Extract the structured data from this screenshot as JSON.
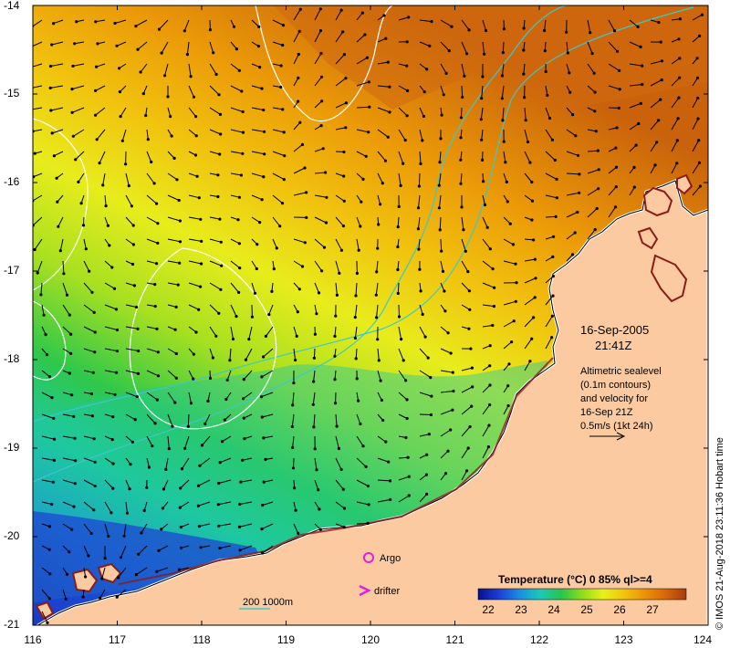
{
  "map": {
    "lon_range": [
      116,
      124
    ],
    "lat_range": [
      -21,
      -14
    ],
    "x_ticks": [
      "116",
      "117",
      "118",
      "119",
      "120",
      "121",
      "122",
      "123",
      "124"
    ],
    "y_ticks": [
      "-14",
      "-15",
      "-16",
      "-17",
      "-18",
      "-19",
      "-20",
      "-21"
    ]
  },
  "date": {
    "line1": "16-Sep-2005",
    "line2": "21:41Z"
  },
  "altimetry_note": [
    "Altimetric sealevel",
    "(0.1m contours)",
    "and velocity for",
    "16-Sep 21Z",
    "0.5m/s (1kt 24h)"
  ],
  "legend": {
    "argo": "Argo",
    "drifter": "drifter",
    "bathy": "200  1000m"
  },
  "colorbar": {
    "title": "Temperature (°C) 0 85% ql>=4",
    "ticks": [
      "22",
      "23",
      "24",
      "25",
      "26",
      "27"
    ],
    "colors": [
      "#07108c",
      "#1c3fd4",
      "#1a8fe0",
      "#1ec8b8",
      "#27c44d",
      "#8fdc1c",
      "#e8f01c",
      "#f1c40e",
      "#ec9208",
      "#d8670a",
      "#a83a0d"
    ]
  },
  "credit": "© IMOS 21-Aug-2018 23:11:36 Hobart time",
  "colors": {
    "land": "#fbcaa0",
    "coast": "#ffffff",
    "reef": "#8b1a1a",
    "bathy_contour": "#3ec8c8",
    "sealevel_contour": "#ffffff",
    "argo": "#e020e0"
  }
}
